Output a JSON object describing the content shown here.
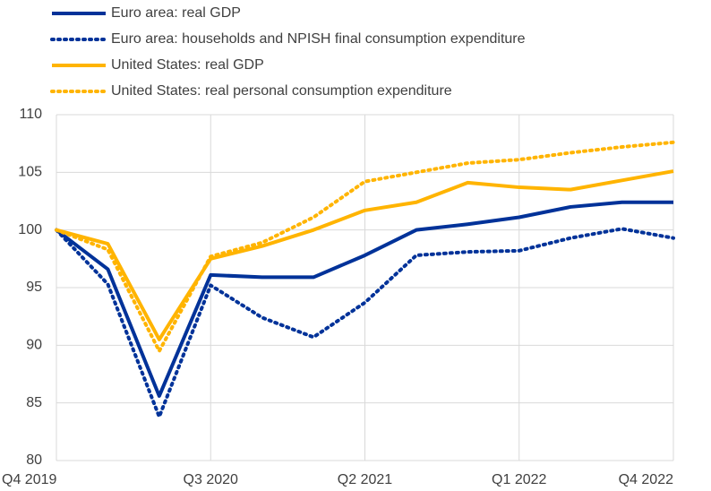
{
  "chart_data": {
    "type": "line",
    "categories": [
      "Q4 2019",
      null,
      null,
      "Q3 2020",
      null,
      null,
      "Q2 2021",
      null,
      null,
      "Q1 2022",
      null,
      null,
      "Q4 2022"
    ],
    "series": [
      {
        "name": "Euro area: real GDP",
        "color": "#003299",
        "dash": "solid",
        "values": [
          100,
          96.6,
          85.6,
          96.1,
          95.9,
          95.9,
          97.8,
          100.0,
          100.5,
          101.1,
          102.0,
          102.4,
          102.4
        ]
      },
      {
        "name": "Euro area: households and NPISH final consumption expenditure",
        "color": "#003299",
        "dash": "dotted",
        "values": [
          100,
          95.3,
          83.8,
          95.2,
          92.4,
          90.7,
          93.7,
          97.8,
          98.1,
          98.2,
          99.3,
          100.1,
          99.3
        ]
      },
      {
        "name": "United States: real GDP",
        "color": "#ffb400",
        "dash": "solid",
        "values": [
          100,
          98.8,
          90.5,
          97.5,
          98.6,
          100.0,
          101.7,
          102.4,
          104.1,
          103.7,
          103.5,
          104.3,
          105.1
        ]
      },
      {
        "name": "United States: real personal consumption expenditure",
        "color": "#ffb400",
        "dash": "dotted",
        "values": [
          100,
          98.3,
          89.5,
          97.7,
          98.9,
          101.1,
          104.2,
          105.0,
          105.8,
          106.1,
          106.7,
          107.2,
          107.6
        ]
      }
    ],
    "ylim": [
      80,
      110
    ],
    "yticks": [
      80,
      85,
      90,
      95,
      100,
      105,
      110
    ],
    "grid": true
  }
}
